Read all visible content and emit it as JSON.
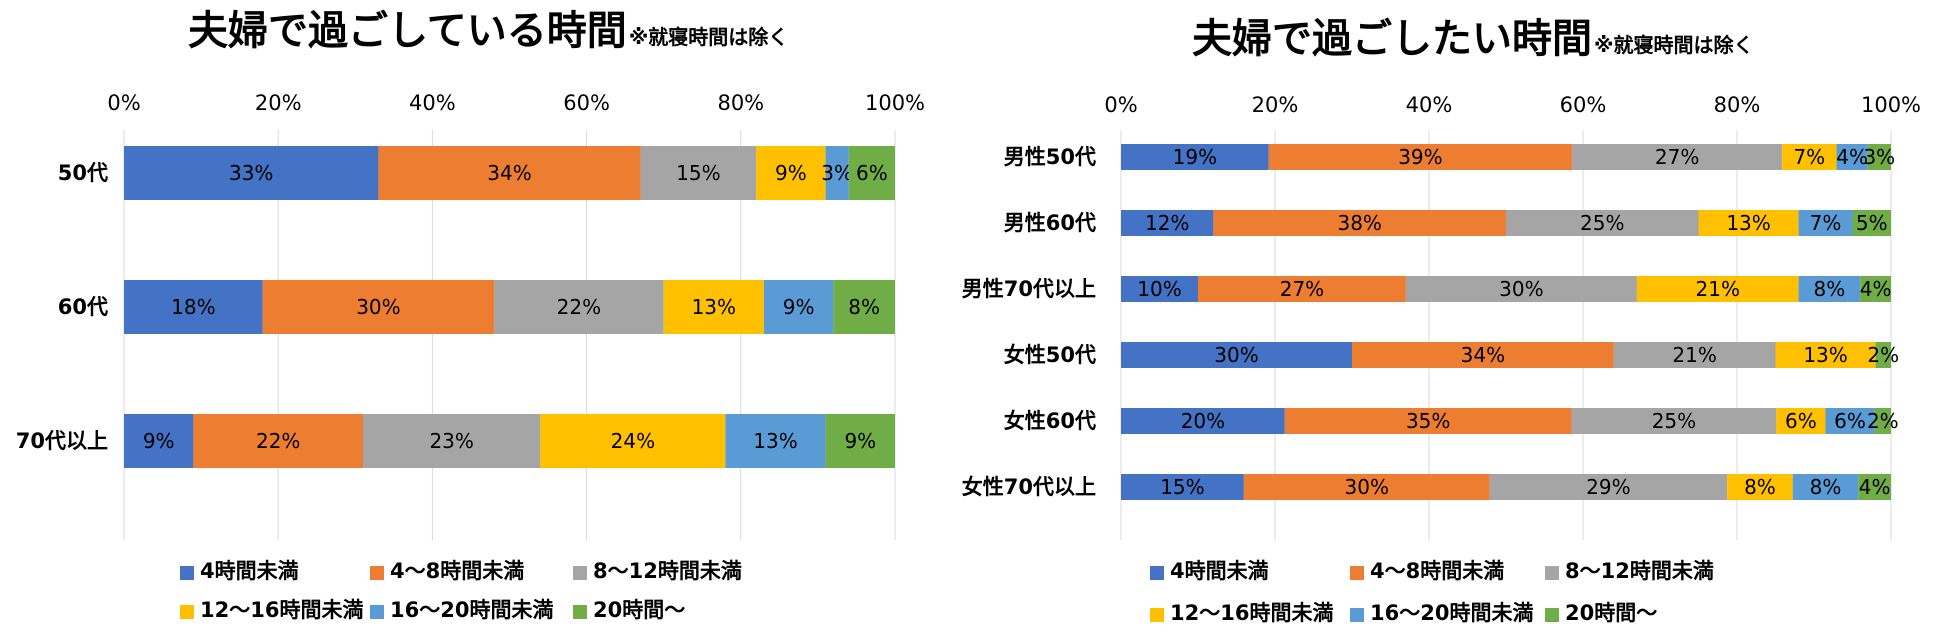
{
  "chart_data": [
    {
      "type": "bar",
      "orientation": "horizontal",
      "stacked": "percent",
      "title": "夫婦で過ごしている時間",
      "subtitle": "※就寝時間は除く",
      "x_ticks": [
        "0%",
        "20%",
        "40%",
        "60%",
        "80%",
        "100%"
      ],
      "xlim": [
        0,
        100
      ],
      "grid": true,
      "legend_position": "bottom",
      "categories": [
        "50代",
        "60代",
        "70代以上"
      ],
      "series": [
        {
          "name": "4時間未満",
          "color": "#4472C4",
          "values": [
            33,
            18,
            9
          ],
          "labels": [
            "33%",
            "18%",
            "9%"
          ]
        },
        {
          "name": "4〜8時間未満",
          "color": "#ED7D31",
          "values": [
            34,
            30,
            22
          ],
          "labels": [
            "34%",
            "30%",
            "22%"
          ]
        },
        {
          "name": "8〜12時間未満",
          "color": "#A5A5A5",
          "values": [
            15,
            22,
            23
          ],
          "labels": [
            "15%",
            "22%",
            "23%"
          ]
        },
        {
          "name": "12〜16時間未満",
          "color": "#FFC000",
          "values": [
            9,
            13,
            24
          ],
          "labels": [
            "9%",
            "13%",
            "24%"
          ]
        },
        {
          "name": "16〜20時間未満",
          "color": "#5B9BD5",
          "values": [
            3,
            9,
            13
          ],
          "labels": [
            "3%",
            "9%",
            "13%"
          ]
        },
        {
          "name": "20時間〜",
          "color": "#70AD47",
          "values": [
            6,
            8,
            9
          ],
          "labels": [
            "6%",
            "8%",
            "9%"
          ]
        }
      ]
    },
    {
      "type": "bar",
      "orientation": "horizontal",
      "stacked": "percent",
      "title": "夫婦で過ごしたい時間",
      "subtitle": "※就寝時間は除く",
      "x_ticks": [
        "0%",
        "20%",
        "40%",
        "60%",
        "80%",
        "100%"
      ],
      "xlim": [
        0,
        100
      ],
      "grid": true,
      "legend_position": "bottom",
      "categories": [
        "男性50代",
        "男性60代",
        "男性70代以上",
        "女性50代",
        "女性60代",
        "女性70代以上"
      ],
      "series": [
        {
          "name": "4時間未満",
          "color": "#4472C4",
          "values": [
            19,
            12,
            10,
            30,
            20,
            15
          ],
          "labels": [
            "19%",
            "12%",
            "10%",
            "30%",
            "20%",
            "15%"
          ]
        },
        {
          "name": "4〜8時間未満",
          "color": "#ED7D31",
          "values": [
            39,
            38,
            27,
            34,
            35,
            30
          ],
          "labels": [
            "39%",
            "38%",
            "27%",
            "34%",
            "35%",
            "30%"
          ]
        },
        {
          "name": "8〜12時間未満",
          "color": "#A5A5A5",
          "values": [
            27,
            25,
            30,
            21,
            25,
            29
          ],
          "labels": [
            "27%",
            "25%",
            "30%",
            "21%",
            "25%",
            "29%"
          ]
        },
        {
          "name": "12〜16時間未満",
          "color": "#FFC000",
          "values": [
            7,
            13,
            21,
            13,
            6,
            8
          ],
          "labels": [
            "7%",
            "13%",
            "21%",
            "13%",
            "6%",
            "8%"
          ]
        },
        {
          "name": "16〜20時間未満",
          "color": "#5B9BD5",
          "values": [
            4,
            7,
            8,
            0,
            6,
            8
          ],
          "labels": [
            "4%",
            "7%",
            "8%",
            "",
            "6%",
            "8%"
          ]
        },
        {
          "name": "20時間〜",
          "color": "#70AD47",
          "values": [
            3,
            5,
            4,
            2,
            2,
            4
          ],
          "labels": [
            "3%",
            "5%",
            "4%",
            "2%",
            "2%",
            "4%"
          ]
        }
      ]
    }
  ]
}
